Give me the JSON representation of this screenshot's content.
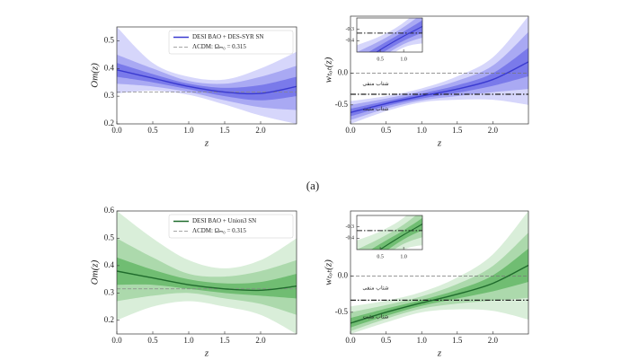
{
  "panel_label": "(a)",
  "chart_data": [
    {
      "type": "line",
      "xlabel": "z",
      "ylabel": "Om(z)",
      "x": [
        0,
        0.5,
        1,
        1.5,
        2,
        2.5
      ],
      "series": [
        {
          "name": "DESI BAO + DES-SYR SN",
          "color": "#3a3ad0",
          "values": [
            0.395,
            0.365,
            0.335,
            0.315,
            0.31,
            0.335
          ]
        }
      ],
      "bands": [
        {
          "color": "#d6d6fb",
          "lower": [
            0.31,
            0.32,
            0.305,
            0.27,
            0.23,
            0.2
          ],
          "upper": [
            0.55,
            0.42,
            0.37,
            0.36,
            0.4,
            0.46
          ]
        },
        {
          "color": "#a9a9f3",
          "lower": [
            0.345,
            0.335,
            0.315,
            0.285,
            0.26,
            0.25
          ],
          "upper": [
            0.45,
            0.4,
            0.355,
            0.345,
            0.37,
            0.41
          ]
        },
        {
          "color": "#7a7aea",
          "lower": [
            0.37,
            0.35,
            0.325,
            0.3,
            0.285,
            0.3
          ],
          "upper": [
            0.42,
            0.38,
            0.345,
            0.33,
            0.34,
            0.37
          ]
        }
      ],
      "reference_lines": [
        {
          "name": "ΛCDM: Ωₘ₀ = 0.315",
          "value": 0.315,
          "style": "dashed",
          "color": "#888888"
        }
      ],
      "xlim": [
        0,
        2.5
      ],
      "ylim": [
        0.2,
        0.55
      ],
      "xticks": [
        {
          "value": 0,
          "label": "0.0"
        },
        0.5,
        {
          "value": 1,
          "label": "1.0"
        },
        1.5,
        {
          "value": 2,
          "label": "2.0"
        }
      ],
      "yticks": [
        0.2,
        0.3,
        0.4,
        0.5
      ],
      "legend": "upper right"
    },
    {
      "type": "line",
      "xlabel": "z",
      "ylabel": "wₜₒₜ(z)",
      "x": [
        0,
        0.5,
        1,
        1.5,
        2,
        2.5
      ],
      "series": [
        {
          "color": "#3a3ad0",
          "values": [
            -0.62,
            -0.48,
            -0.36,
            -0.25,
            -0.1,
            0.18
          ]
        }
      ],
      "bands": [
        {
          "color": "#d6d6fb",
          "lower": [
            -0.8,
            -0.6,
            -0.46,
            -0.42,
            -0.42,
            -0.5
          ],
          "upper": [
            -0.44,
            -0.36,
            -0.24,
            -0.05,
            0.25,
            0.9
          ]
        },
        {
          "color": "#a9a9f3",
          "lower": [
            -0.74,
            -0.56,
            -0.43,
            -0.36,
            -0.3,
            -0.25
          ],
          "upper": [
            -0.5,
            -0.4,
            -0.28,
            -0.12,
            0.12,
            0.65
          ]
        },
        {
          "color": "#7a7aea",
          "lower": [
            -0.68,
            -0.52,
            -0.4,
            -0.31,
            -0.2,
            -0.05
          ],
          "upper": [
            -0.56,
            -0.44,
            -0.32,
            -0.19,
            0.0,
            0.4
          ]
        }
      ],
      "reference_lines": [
        {
          "value": 0,
          "style": "dashed",
          "color": "#777777"
        },
        {
          "value": -0.333,
          "style": "dashdot",
          "color": "#222222"
        }
      ],
      "annotations": [
        "شتاب منفی",
        "شتاب مثبت"
      ],
      "xlim": [
        0,
        2.5
      ],
      "ylim": [
        -0.8,
        0.9
      ],
      "xticks": [
        {
          "value": 0,
          "label": "0.0"
        },
        0.5,
        {
          "value": 1,
          "label": "1.0"
        },
        1.5,
        {
          "value": 2,
          "label": "2.0"
        }
      ],
      "yticks": [
        {
          "value": 0,
          "label": "0.0"
        },
        -0.5
      ],
      "inset": {
        "xlim": [
          0,
          1.4
        ],
        "ylim": [
          -0.5,
          -0.2
        ],
        "xticks": [
          0.5,
          {
            "value": 1,
            "label": "1.0"
          }
        ],
        "yticks": [
          -0.3,
          -0.4
        ]
      }
    },
    {
      "type": "line",
      "xlabel": "z",
      "ylabel": "Om(z)",
      "x": [
        0,
        0.5,
        1,
        1.5,
        2,
        2.5
      ],
      "series": [
        {
          "name": "DESI BAO + Union3 SN",
          "color": "#1f6b2c",
          "values": [
            0.38,
            0.355,
            0.33,
            0.315,
            0.31,
            0.325
          ]
        }
      ],
      "bands": [
        {
          "color": "#d9eed9",
          "lower": [
            0.2,
            0.25,
            0.27,
            0.25,
            0.22,
            0.15
          ],
          "upper": [
            0.6,
            0.5,
            0.42,
            0.39,
            0.42,
            0.5
          ]
        },
        {
          "color": "#acd9ac",
          "lower": [
            0.27,
            0.29,
            0.3,
            0.28,
            0.26,
            0.22
          ],
          "upper": [
            0.5,
            0.43,
            0.37,
            0.36,
            0.38,
            0.42
          ]
        },
        {
          "color": "#70bd72",
          "lower": [
            0.33,
            0.33,
            0.315,
            0.3,
            0.29,
            0.28
          ],
          "upper": [
            0.43,
            0.385,
            0.35,
            0.335,
            0.34,
            0.37
          ]
        }
      ],
      "reference_lines": [
        {
          "name": "ΛCDM: Ωₘ₀ = 0.315",
          "value": 0.315,
          "style": "dashed",
          "color": "#888888"
        }
      ],
      "xlim": [
        0,
        2.5
      ],
      "ylim": [
        0.15,
        0.6
      ],
      "xticks": [
        {
          "value": 0,
          "label": "0.0"
        },
        0.5,
        {
          "value": 1,
          "label": "1.0"
        },
        1.5,
        {
          "value": 2,
          "label": "2.0"
        }
      ],
      "yticks": [
        0.2,
        0.3,
        0.4,
        0.5,
        0.6
      ],
      "legend": "upper right"
    },
    {
      "type": "line",
      "xlabel": "z",
      "ylabel": "wₜₒₜ(z)",
      "x": [
        0,
        0.5,
        1,
        1.5,
        2,
        2.5
      ],
      "series": [
        {
          "color": "#1f6b2c",
          "values": [
            -0.65,
            -0.5,
            -0.37,
            -0.25,
            -0.1,
            0.15
          ]
        }
      ],
      "bands": [
        {
          "color": "#d9eed9",
          "lower": [
            -0.8,
            -0.64,
            -0.5,
            -0.46,
            -0.48,
            -0.6
          ],
          "upper": [
            -0.42,
            -0.34,
            -0.22,
            -0.02,
            0.3,
            0.9
          ]
        },
        {
          "color": "#acd9ac",
          "lower": [
            -0.76,
            -0.59,
            -0.45,
            -0.38,
            -0.34,
            -0.3
          ],
          "upper": [
            -0.5,
            -0.4,
            -0.28,
            -0.11,
            0.14,
            0.6
          ]
        },
        {
          "color": "#70bd72",
          "lower": [
            -0.71,
            -0.55,
            -0.41,
            -0.31,
            -0.21,
            -0.08
          ],
          "upper": [
            -0.58,
            -0.45,
            -0.33,
            -0.19,
            0.01,
            0.38
          ]
        }
      ],
      "reference_lines": [
        {
          "value": 0,
          "style": "dashed",
          "color": "#777777"
        },
        {
          "value": -0.333,
          "style": "dashdot",
          "color": "#222222"
        }
      ],
      "annotations": [
        "شتاب منفی",
        "شتاب مثبت"
      ],
      "xlim": [
        0,
        2.5
      ],
      "ylim": [
        -0.8,
        0.9
      ],
      "xticks": [
        {
          "value": 0,
          "label": "0.0"
        },
        0.5,
        {
          "value": 1,
          "label": "1.0"
        },
        1.5,
        {
          "value": 2,
          "label": "2.0"
        }
      ],
      "yticks": [
        {
          "value": 0,
          "label": "0.0"
        },
        -0.5
      ],
      "inset": {
        "xlim": [
          0,
          1.4
        ],
        "ylim": [
          -0.5,
          -0.2
        ],
        "xticks": [
          0.5,
          {
            "value": 1,
            "label": "1.0"
          }
        ],
        "yticks": [
          -0.3,
          -0.4
        ]
      }
    }
  ]
}
